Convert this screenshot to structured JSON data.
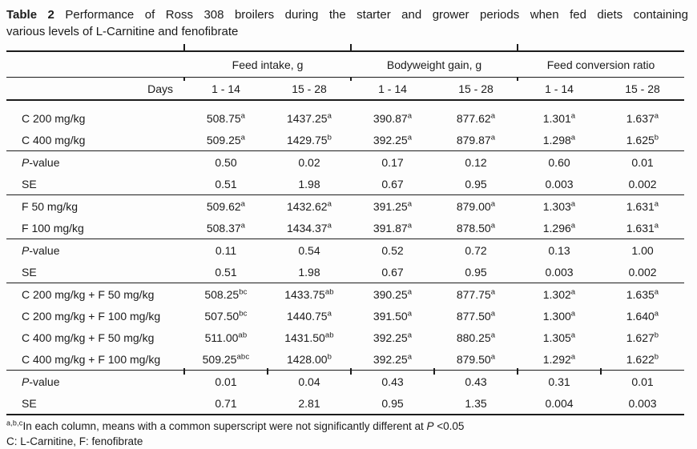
{
  "title": {
    "label": "Table 2",
    "line1_rest": "Performance of Ross 308 broilers during the starter and grower periods when fed diets containing",
    "line2": "various levels of L-Carnitine and fenofibrate"
  },
  "table": {
    "days_label": "Days",
    "group_headers": [
      "Feed intake, g",
      "Bodyweight gain, g",
      "Feed conversion ratio"
    ],
    "period_headers": [
      "1 - 14",
      "15 - 28",
      "1 - 14",
      "15 - 28",
      "1 - 14",
      "15 - 28"
    ],
    "sections": [
      {
        "treatments": [
          {
            "label": "C 200 mg/kg",
            "cells": [
              {
                "v": "508.75",
                "s": "a"
              },
              {
                "v": "1437.25",
                "s": "a"
              },
              {
                "v": "390.87",
                "s": "a"
              },
              {
                "v": "877.62",
                "s": "a"
              },
              {
                "v": "1.301",
                "s": "a"
              },
              {
                "v": "1.637",
                "s": "a"
              }
            ]
          },
          {
            "label": "C 400 mg/kg",
            "cells": [
              {
                "v": "509.25",
                "s": "a"
              },
              {
                "v": "1429.75",
                "s": "b"
              },
              {
                "v": "392.25",
                "s": "a"
              },
              {
                "v": "879.87",
                "s": "a"
              },
              {
                "v": "1.298",
                "s": "a"
              },
              {
                "v": "1.625",
                "s": "b"
              }
            ]
          }
        ],
        "stats": [
          {
            "label_italic": "P",
            "label_rest": "-value",
            "cells": [
              "0.50",
              "0.02",
              "0.17",
              "0.12",
              "0.60",
              "0.01"
            ]
          },
          {
            "label_italic": "",
            "label_rest": "SE",
            "cells": [
              "0.51",
              "1.98",
              "0.67",
              "0.95",
              "0.003",
              "0.002"
            ]
          }
        ]
      },
      {
        "treatments": [
          {
            "label": "F 50 mg/kg",
            "cells": [
              {
                "v": "509.62",
                "s": "a"
              },
              {
                "v": "1432.62",
                "s": "a"
              },
              {
                "v": "391.25",
                "s": "a"
              },
              {
                "v": "879.00",
                "s": "a"
              },
              {
                "v": "1.303",
                "s": "a"
              },
              {
                "v": "1.631",
                "s": "a"
              }
            ]
          },
          {
            "label": "F 100 mg/kg",
            "cells": [
              {
                "v": "508.37",
                "s": "a"
              },
              {
                "v": "1434.37",
                "s": "a"
              },
              {
                "v": "391.87",
                "s": "a"
              },
              {
                "v": "878.50",
                "s": "a"
              },
              {
                "v": "1.296",
                "s": "a"
              },
              {
                "v": "1.631",
                "s": "a"
              }
            ]
          }
        ],
        "stats": [
          {
            "label_italic": "P",
            "label_rest": "-value",
            "cells": [
              "0.11",
              "0.54",
              "0.52",
              "0.72",
              "0.13",
              "1.00"
            ]
          },
          {
            "label_italic": "",
            "label_rest": "SE",
            "cells": [
              "0.51",
              "1.98",
              "0.67",
              "0.95",
              "0.003",
              "0.002"
            ]
          }
        ]
      },
      {
        "treatments": [
          {
            "label": "C 200 mg/kg + F 50 mg/kg",
            "cells": [
              {
                "v": "508.25",
                "s": "bc"
              },
              {
                "v": "1433.75",
                "s": "ab"
              },
              {
                "v": "390.25",
                "s": "a"
              },
              {
                "v": "877.75",
                "s": "a"
              },
              {
                "v": "1.302",
                "s": "a"
              },
              {
                "v": "1.635",
                "s": "a"
              }
            ]
          },
          {
            "label": "C 200 mg/kg + F 100 mg/kg",
            "cells": [
              {
                "v": "507.50",
                "s": "bc"
              },
              {
                "v": "1440.75",
                "s": "a"
              },
              {
                "v": "391.50",
                "s": "a"
              },
              {
                "v": "877.50",
                "s": "a"
              },
              {
                "v": "1.300",
                "s": "a"
              },
              {
                "v": "1.640",
                "s": "a"
              }
            ]
          },
          {
            "label": "C 400 mg/kg + F 50 mg/kg",
            "cells": [
              {
                "v": "511.00",
                "s": "ab"
              },
              {
                "v": "1431.50",
                "s": "ab"
              },
              {
                "v": "392.25",
                "s": "a"
              },
              {
                "v": "880.25",
                "s": "a"
              },
              {
                "v": "1.305",
                "s": "a"
              },
              {
                "v": "1.627",
                "s": "b"
              }
            ]
          },
          {
            "label": "C 400 mg/kg + F 100 mg/kg",
            "cells": [
              {
                "v": "509.25",
                "s": "abc"
              },
              {
                "v": "1428.00",
                "s": "b"
              },
              {
                "v": "392.25",
                "s": "a"
              },
              {
                "v": "879.50",
                "s": "a"
              },
              {
                "v": "1.292",
                "s": "a"
              },
              {
                "v": "1.622",
                "s": "b"
              }
            ]
          }
        ],
        "stats": [
          {
            "label_italic": "P",
            "label_rest": "-value",
            "cells": [
              "0.01",
              "0.04",
              "0.43",
              "0.43",
              "0.31",
              "0.01"
            ]
          },
          {
            "label_italic": "",
            "label_rest": "SE",
            "cells": [
              "0.71",
              "2.81",
              "0.95",
              "1.35",
              "0.004",
              "0.003"
            ]
          }
        ]
      }
    ]
  },
  "footnotes": [
    {
      "sup": "a,b,c",
      "pre": "In each column, means with a common superscript were not significantly different at ",
      "italic": "P",
      "post": " <0.05"
    },
    {
      "sup": "",
      "pre": "C: L-Carnitine, F: fenofibrate",
      "italic": "",
      "post": ""
    }
  ]
}
